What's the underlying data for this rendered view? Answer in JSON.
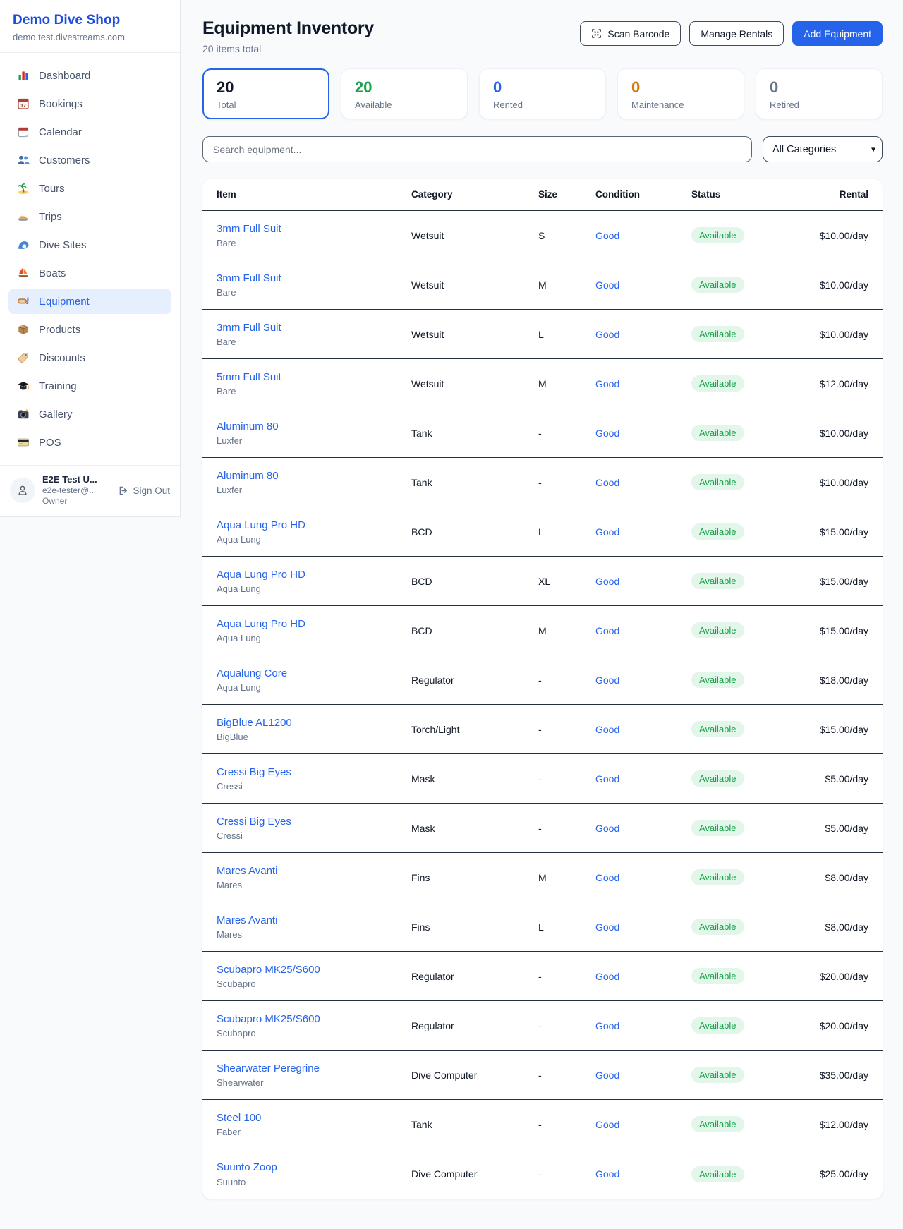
{
  "sidebar": {
    "brand": "Demo Dive Shop",
    "domain": "demo.test.divestreams.com",
    "items": [
      {
        "label": "Dashboard",
        "icon": "bar-chart",
        "active": false
      },
      {
        "label": "Bookings",
        "icon": "calendar-date",
        "active": false
      },
      {
        "label": "Calendar",
        "icon": "calendar-tearoff",
        "active": false
      },
      {
        "label": "Customers",
        "icon": "people",
        "active": false
      },
      {
        "label": "Tours",
        "icon": "island",
        "active": false
      },
      {
        "label": "Trips",
        "icon": "speedboat",
        "active": false
      },
      {
        "label": "Dive Sites",
        "icon": "wave",
        "active": false
      },
      {
        "label": "Boats",
        "icon": "sailboat",
        "active": false
      },
      {
        "label": "Equipment",
        "icon": "dive-mask",
        "active": true
      },
      {
        "label": "Products",
        "icon": "package",
        "active": false
      },
      {
        "label": "Discounts",
        "icon": "tag",
        "active": false
      },
      {
        "label": "Training",
        "icon": "grad-cap",
        "active": false
      },
      {
        "label": "Gallery",
        "icon": "camera",
        "active": false
      },
      {
        "label": "POS",
        "icon": "credit-card",
        "active": false
      }
    ],
    "user": {
      "name": "E2E Test U...",
      "email": "e2e-tester@...",
      "role": "Owner",
      "sign_out": "Sign Out"
    }
  },
  "header": {
    "title": "Equipment Inventory",
    "subtitle": "20 items total",
    "scan_label": "Scan Barcode",
    "manage_label": "Manage Rentals",
    "add_label": "Add Equipment"
  },
  "stats": [
    {
      "value": "20",
      "label": "Total",
      "color": "#111827",
      "selected": true
    },
    {
      "value": "20",
      "label": "Available",
      "color": "#16a34a",
      "selected": false
    },
    {
      "value": "0",
      "label": "Rented",
      "color": "#2563eb",
      "selected": false
    },
    {
      "value": "0",
      "label": "Maintenance",
      "color": "#d97706",
      "selected": false
    },
    {
      "value": "0",
      "label": "Retired",
      "color": "#64748b",
      "selected": false
    }
  ],
  "filters": {
    "search_placeholder": "Search equipment...",
    "category_selected": "All Categories"
  },
  "table": {
    "columns": [
      "Item",
      "Category",
      "Size",
      "Condition",
      "Status",
      "Rental"
    ],
    "rows": [
      {
        "item": "3mm Full Suit",
        "brand": "Bare",
        "category": "Wetsuit",
        "size": "S",
        "condition": "Good",
        "status": "Available",
        "rental": "$10.00/day"
      },
      {
        "item": "3mm Full Suit",
        "brand": "Bare",
        "category": "Wetsuit",
        "size": "M",
        "condition": "Good",
        "status": "Available",
        "rental": "$10.00/day"
      },
      {
        "item": "3mm Full Suit",
        "brand": "Bare",
        "category": "Wetsuit",
        "size": "L",
        "condition": "Good",
        "status": "Available",
        "rental": "$10.00/day"
      },
      {
        "item": "5mm Full Suit",
        "brand": "Bare",
        "category": "Wetsuit",
        "size": "M",
        "condition": "Good",
        "status": "Available",
        "rental": "$12.00/day"
      },
      {
        "item": "Aluminum 80",
        "brand": "Luxfer",
        "category": "Tank",
        "size": "-",
        "condition": "Good",
        "status": "Available",
        "rental": "$10.00/day"
      },
      {
        "item": "Aluminum 80",
        "brand": "Luxfer",
        "category": "Tank",
        "size": "-",
        "condition": "Good",
        "status": "Available",
        "rental": "$10.00/day"
      },
      {
        "item": "Aqua Lung Pro HD",
        "brand": "Aqua Lung",
        "category": "BCD",
        "size": "L",
        "condition": "Good",
        "status": "Available",
        "rental": "$15.00/day"
      },
      {
        "item": "Aqua Lung Pro HD",
        "brand": "Aqua Lung",
        "category": "BCD",
        "size": "XL",
        "condition": "Good",
        "status": "Available",
        "rental": "$15.00/day"
      },
      {
        "item": "Aqua Lung Pro HD",
        "brand": "Aqua Lung",
        "category": "BCD",
        "size": "M",
        "condition": "Good",
        "status": "Available",
        "rental": "$15.00/day"
      },
      {
        "item": "Aqualung Core",
        "brand": "Aqua Lung",
        "category": "Regulator",
        "size": "-",
        "condition": "Good",
        "status": "Available",
        "rental": "$18.00/day"
      },
      {
        "item": "BigBlue AL1200",
        "brand": "BigBlue",
        "category": "Torch/Light",
        "size": "-",
        "condition": "Good",
        "status": "Available",
        "rental": "$15.00/day"
      },
      {
        "item": "Cressi Big Eyes",
        "brand": "Cressi",
        "category": "Mask",
        "size": "-",
        "condition": "Good",
        "status": "Available",
        "rental": "$5.00/day"
      },
      {
        "item": "Cressi Big Eyes",
        "brand": "Cressi",
        "category": "Mask",
        "size": "-",
        "condition": "Good",
        "status": "Available",
        "rental": "$5.00/day"
      },
      {
        "item": "Mares Avanti",
        "brand": "Mares",
        "category": "Fins",
        "size": "M",
        "condition": "Good",
        "status": "Available",
        "rental": "$8.00/day"
      },
      {
        "item": "Mares Avanti",
        "brand": "Mares",
        "category": "Fins",
        "size": "L",
        "condition": "Good",
        "status": "Available",
        "rental": "$8.00/day"
      },
      {
        "item": "Scubapro MK25/S600",
        "brand": "Scubapro",
        "category": "Regulator",
        "size": "-",
        "condition": "Good",
        "status": "Available",
        "rental": "$20.00/day"
      },
      {
        "item": "Scubapro MK25/S600",
        "brand": "Scubapro",
        "category": "Regulator",
        "size": "-",
        "condition": "Good",
        "status": "Available",
        "rental": "$20.00/day"
      },
      {
        "item": "Shearwater Peregrine",
        "brand": "Shearwater",
        "category": "Dive Computer",
        "size": "-",
        "condition": "Good",
        "status": "Available",
        "rental": "$35.00/day"
      },
      {
        "item": "Steel 100",
        "brand": "Faber",
        "category": "Tank",
        "size": "-",
        "condition": "Good",
        "status": "Available",
        "rental": "$12.00/day"
      },
      {
        "item": "Suunto Zoop",
        "brand": "Suunto",
        "category": "Dive Computer",
        "size": "-",
        "condition": "Good",
        "status": "Available",
        "rental": "$25.00/day"
      }
    ]
  },
  "colors": {
    "accent": "#2563eb",
    "brand_blue": "#1d4ed8",
    "available_green": "#16a34a",
    "maintenance_orange": "#d97706",
    "badge_bg": "#e2f6ea",
    "page_bg": "#f8fafc"
  }
}
